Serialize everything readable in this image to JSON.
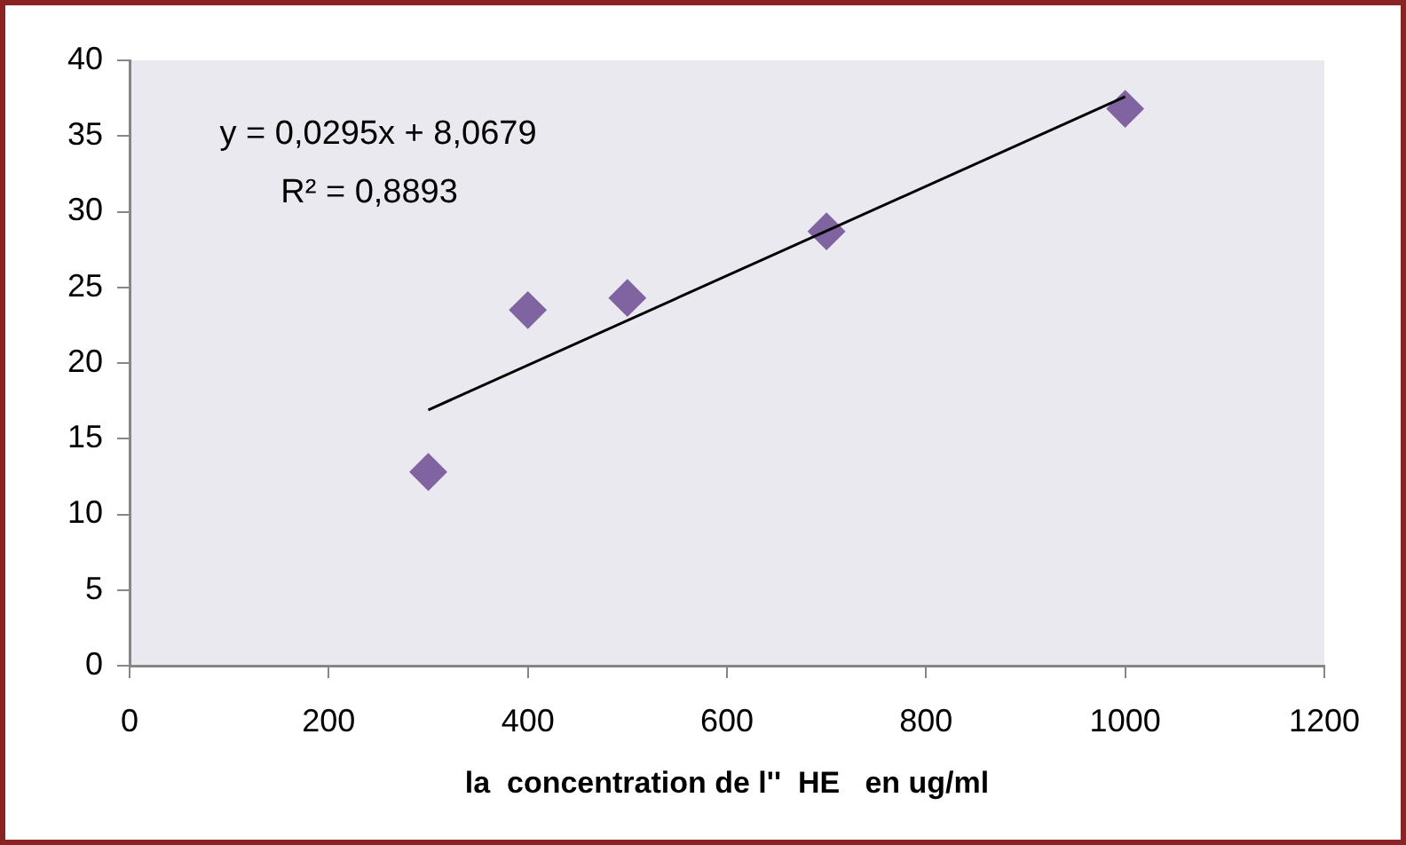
{
  "chart_data": {
    "type": "scatter",
    "xlabel": "la  concentration de l''  HE   en ug/ml",
    "xlim": [
      0,
      1200
    ],
    "xticks": [
      0,
      200,
      400,
      600,
      800,
      1000,
      1200
    ],
    "ylim": [
      0,
      40
    ],
    "yticks": [
      0,
      5,
      10,
      15,
      20,
      25,
      30,
      35,
      40
    ],
    "grid": false,
    "legend": false,
    "annotations": [
      "y = 0,0295x + 8,0679",
      "R² = 0,8893"
    ],
    "series": [
      {
        "type": "scatter",
        "marker": "diamond",
        "color": "#8064a2",
        "x": [
          300,
          400,
          500,
          700,
          1000
        ],
        "values": [
          12.8,
          23.5,
          24.3,
          28.7,
          36.8
        ]
      },
      {
        "type": "line",
        "color": "#000000",
        "x": [
          300,
          1000
        ],
        "values": [
          16.9,
          37.6
        ]
      }
    ]
  }
}
